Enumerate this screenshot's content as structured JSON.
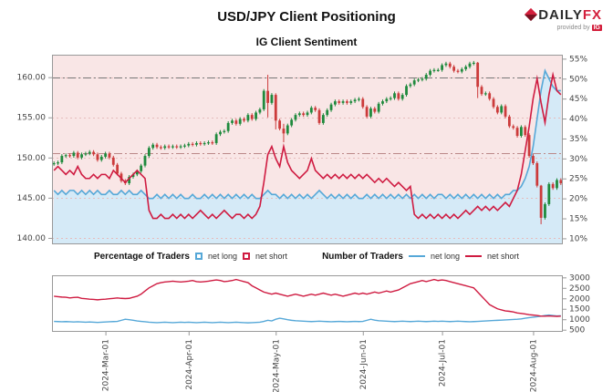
{
  "header": {
    "title": "USD/JPY Client Positioning",
    "subtitle": "IG Client Sentiment",
    "brand": {
      "daily": "DAILY",
      "fx": "FX",
      "provided_by": "provided by",
      "ig": "IG"
    }
  },
  "legend": {
    "percentage_label": "Percentage of Traders",
    "number_label": "Number of Traders",
    "net_long": "net long",
    "net_short": "net short"
  },
  "colors": {
    "net_long": "#56a8d8",
    "net_short": "#cf1b41",
    "long_fill": "#d5eaf7",
    "short_bg": "#f9e6e6",
    "candle_up": "#1f8a3d",
    "candle_down": "#cc3b3b",
    "grid": "#e6bcbc",
    "border": "#999999",
    "text": "#444444"
  },
  "chart_data": [
    {
      "name": "sentiment_price",
      "type": "candlestick+line",
      "title": "IG Client Sentiment",
      "price_axis": {
        "side": "left",
        "range": [
          139.2,
          162.8
        ],
        "ticks": [
          140,
          145,
          150,
          155,
          160
        ]
      },
      "percent_axis": {
        "side": "right",
        "range": [
          8.5,
          56
        ],
        "ticks": [
          10,
          15,
          20,
          25,
          30,
          35,
          40,
          45,
          50,
          55
        ]
      },
      "reference_lines": [
        {
          "axis": "price",
          "value": 159.95,
          "style": "dashdot",
          "color": "#777777"
        },
        {
          "axis": "price",
          "value": 150.55,
          "style": "dashdot",
          "color": "#bb8888"
        }
      ],
      "x_ticks": [
        {
          "i": 13,
          "label": "2024-Mar-01"
        },
        {
          "i": 34,
          "label": "2024-Apr-01"
        },
        {
          "i": 56,
          "label": "2024-May-01"
        },
        {
          "i": 78,
          "label": "2024-Jun-01"
        },
        {
          "i": 98,
          "label": "2024-Jul-01"
        },
        {
          "i": 121,
          "label": "2024-Aug-01"
        }
      ],
      "first_open": 149.2,
      "wick_pad": 0.22,
      "wick_overrides": {
        "54": [
          160.3,
          155.0
        ],
        "56": [
          158.0,
          153.5
        ],
        "58": [
          154.2,
          151.9
        ],
        "107": [
          161.9,
          157.4
        ],
        "123": [
          146.6,
          141.7
        ]
      },
      "close": [
        149.3,
        149.4,
        150.2,
        150.3,
        150.2,
        150.6,
        150.0,
        150.4,
        150.5,
        150.7,
        150.4,
        149.7,
        150.1,
        150.5,
        150.0,
        149.1,
        148.0,
        147.1,
        146.8,
        147.6,
        147.9,
        148.3,
        149.0,
        150.2,
        151.2,
        151.6,
        151.3,
        151.2,
        151.4,
        151.3,
        151.4,
        151.3,
        151.4,
        151.5,
        151.7,
        151.6,
        151.8,
        151.7,
        151.8,
        151.9,
        151.8,
        152.9,
        153.2,
        153.3,
        154.3,
        154.6,
        154.2,
        154.8,
        154.6,
        155.3,
        154.8,
        155.6,
        156.0,
        158.3,
        156.8,
        157.8,
        154.6,
        153.6,
        153.0,
        154.0,
        154.7,
        155.3,
        155.5,
        155.3,
        155.6,
        156.2,
        155.9,
        154.3,
        155.3,
        155.9,
        156.6,
        157.0,
        156.8,
        157.0,
        156.8,
        157.0,
        157.2,
        157.3,
        156.3,
        155.1,
        156.1,
        155.7,
        156.7,
        157.0,
        157.3,
        157.4,
        158.0,
        157.3,
        157.8,
        158.9,
        159.1,
        159.6,
        159.7,
        159.8,
        160.3,
        160.8,
        160.9,
        160.9,
        161.5,
        161.7,
        161.3,
        160.8,
        160.7,
        161.0,
        161.3,
        161.7,
        161.8,
        158.8,
        157.9,
        158.0,
        157.3,
        156.3,
        155.6,
        156.4,
        155.1,
        153.9,
        153.7,
        152.7,
        153.8,
        152.8,
        150.2,
        149.3,
        146.5,
        142.5,
        144.2,
        146.7,
        146.2,
        147.2,
        146.8
      ],
      "net_short_pct": [
        27,
        28,
        27,
        26,
        27,
        26,
        28,
        26,
        25,
        25,
        26,
        25,
        26,
        26,
        25,
        27,
        26,
        25,
        24,
        25,
        26,
        27,
        26,
        25,
        17,
        15,
        15,
        16,
        15,
        15,
        16,
        15,
        16,
        15,
        16,
        15,
        16,
        17,
        16,
        15,
        16,
        15,
        16,
        17,
        16,
        15,
        16,
        16,
        15,
        16,
        15,
        16,
        18,
        24,
        31,
        33,
        30,
        28,
        33,
        29,
        27,
        26,
        25,
        26,
        27,
        30,
        27,
        26,
        25,
        26,
        25,
        26,
        25,
        26,
        25,
        26,
        25,
        26,
        25,
        26,
        25,
        24,
        25,
        24,
        25,
        24,
        23,
        24,
        23,
        22,
        23,
        16,
        15,
        16,
        15,
        16,
        15,
        16,
        15,
        16,
        15,
        16,
        15,
        16,
        17,
        16,
        17,
        18,
        17,
        18,
        17,
        18,
        17,
        18,
        19,
        18,
        20,
        22,
        26,
        32,
        38,
        45,
        50,
        44,
        39,
        46,
        51,
        47,
        46
      ],
      "net_long_pct": [
        22,
        21,
        22,
        21,
        22,
        22,
        21,
        22,
        21,
        22,
        21,
        22,
        21,
        21,
        22,
        21,
        21,
        22,
        21,
        22,
        21,
        21,
        22,
        21,
        20,
        20,
        21,
        20,
        21,
        20,
        21,
        20,
        21,
        20,
        20,
        21,
        20,
        20,
        21,
        20,
        21,
        20,
        21,
        20,
        21,
        20,
        21,
        20,
        21,
        20,
        21,
        20,
        20,
        21,
        22,
        21,
        21,
        20,
        21,
        20,
        21,
        20,
        21,
        20,
        21,
        20,
        21,
        22,
        21,
        20,
        21,
        20,
        21,
        20,
        21,
        20,
        21,
        20,
        20,
        21,
        20,
        21,
        20,
        21,
        20,
        21,
        20,
        21,
        20,
        21,
        20,
        21,
        20,
        21,
        20,
        21,
        20,
        21,
        21,
        20,
        21,
        20,
        21,
        20,
        21,
        20,
        21,
        20,
        21,
        20,
        21,
        20,
        21,
        20,
        21,
        21,
        22,
        22,
        23,
        25,
        28,
        33,
        40,
        47,
        52,
        50,
        48,
        47,
        47
      ]
    },
    {
      "name": "number_of_traders",
      "type": "line",
      "count_axis": {
        "side": "right",
        "range": [
          400,
          3100
        ],
        "ticks": [
          500,
          1000,
          1500,
          2000,
          2500,
          3000
        ]
      },
      "net_short_count": [
        2100,
        2080,
        2060,
        2050,
        2020,
        2040,
        2050,
        2000,
        1980,
        1960,
        1950,
        1930,
        1950,
        1960,
        1980,
        2000,
        2020,
        2000,
        1990,
        2000,
        2050,
        2100,
        2200,
        2350,
        2500,
        2600,
        2700,
        2750,
        2780,
        2800,
        2820,
        2800,
        2780,
        2800,
        2820,
        2850,
        2800,
        2780,
        2800,
        2820,
        2850,
        2880,
        2850,
        2800,
        2820,
        2850,
        2900,
        2850,
        2800,
        2750,
        2600,
        2500,
        2400,
        2300,
        2250,
        2200,
        2250,
        2200,
        2150,
        2100,
        2150,
        2200,
        2150,
        2100,
        2150,
        2200,
        2150,
        2200,
        2250,
        2200,
        2150,
        2200,
        2150,
        2100,
        2150,
        2200,
        2250,
        2200,
        2250,
        2200,
        2250,
        2300,
        2250,
        2300,
        2350,
        2300,
        2350,
        2400,
        2500,
        2600,
        2700,
        2750,
        2800,
        2850,
        2800,
        2850,
        2900,
        2850,
        2880,
        2850,
        2800,
        2750,
        2700,
        2650,
        2600,
        2550,
        2500,
        2300,
        2100,
        1900,
        1700,
        1600,
        1500,
        1450,
        1400,
        1380,
        1350,
        1300,
        1280,
        1250,
        1220,
        1200,
        1180,
        1150,
        1150,
        1160,
        1150,
        1140,
        1150
      ],
      "net_long_count": [
        900,
        890,
        880,
        890,
        880,
        870,
        880,
        870,
        860,
        870,
        860,
        850,
        860,
        870,
        880,
        890,
        900,
        950,
        1000,
        980,
        950,
        920,
        900,
        880,
        860,
        850,
        840,
        850,
        860,
        850,
        840,
        850,
        860,
        850,
        860,
        850,
        840,
        850,
        860,
        850,
        840,
        850,
        860,
        850,
        840,
        850,
        860,
        850,
        840,
        830,
        840,
        850,
        860,
        900,
        950,
        920,
        1000,
        1050,
        1020,
        980,
        950,
        930,
        920,
        910,
        900,
        890,
        900,
        910,
        900,
        890,
        880,
        890,
        900,
        890,
        880,
        890,
        900,
        890,
        900,
        950,
        1000,
        960,
        930,
        920,
        910,
        900,
        890,
        900,
        910,
        900,
        890,
        900,
        910,
        900,
        890,
        900,
        910,
        900,
        910,
        900,
        890,
        900,
        910,
        900,
        890,
        880,
        890,
        900,
        910,
        920,
        930,
        940,
        950,
        960,
        970,
        980,
        990,
        1000,
        1020,
        1050,
        1080,
        1100,
        1120,
        1150,
        1180,
        1200,
        1180,
        1160,
        1170
      ]
    }
  ]
}
